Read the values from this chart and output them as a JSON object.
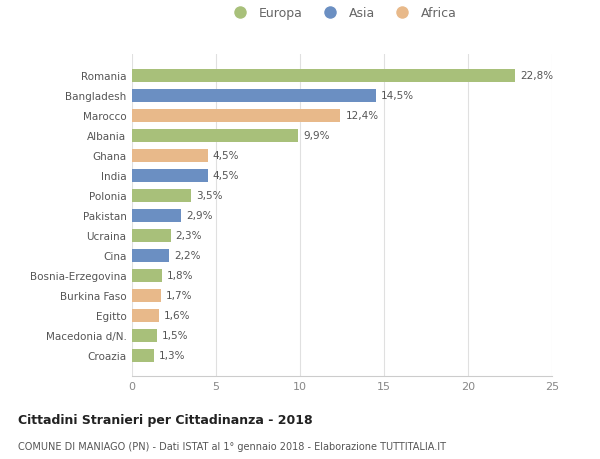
{
  "categories": [
    "Croazia",
    "Macedonia d/N.",
    "Egitto",
    "Burkina Faso",
    "Bosnia-Erzegovina",
    "Cina",
    "Ucraina",
    "Pakistan",
    "Polonia",
    "India",
    "Ghana",
    "Albania",
    "Marocco",
    "Bangladesh",
    "Romania"
  ],
  "values": [
    1.3,
    1.5,
    1.6,
    1.7,
    1.8,
    2.2,
    2.3,
    2.9,
    3.5,
    4.5,
    4.5,
    9.9,
    12.4,
    14.5,
    22.8
  ],
  "continents": [
    "Europa",
    "Europa",
    "Africa",
    "Africa",
    "Europa",
    "Asia",
    "Europa",
    "Asia",
    "Europa",
    "Asia",
    "Africa",
    "Europa",
    "Africa",
    "Asia",
    "Europa"
  ],
  "colors": {
    "Europa": "#a8c07a",
    "Asia": "#6b8fc2",
    "Africa": "#e8b98a"
  },
  "labels": [
    "1,3%",
    "1,5%",
    "1,6%",
    "1,7%",
    "1,8%",
    "2,2%",
    "2,3%",
    "2,9%",
    "3,5%",
    "4,5%",
    "4,5%",
    "9,9%",
    "12,4%",
    "14,5%",
    "22,8%"
  ],
  "title": "Cittadini Stranieri per Cittadinanza - 2018",
  "subtitle": "COMUNE DI MANIAGO (PN) - Dati ISTAT al 1° gennaio 2018 - Elaborazione TUTTITALIA.IT",
  "xlim": [
    0,
    25
  ],
  "xticks": [
    0,
    5,
    10,
    15,
    20,
    25
  ],
  "background_color": "#ffffff",
  "grid_color": "#e0e0e0",
  "legend_labels": [
    "Europa",
    "Asia",
    "Africa"
  ]
}
